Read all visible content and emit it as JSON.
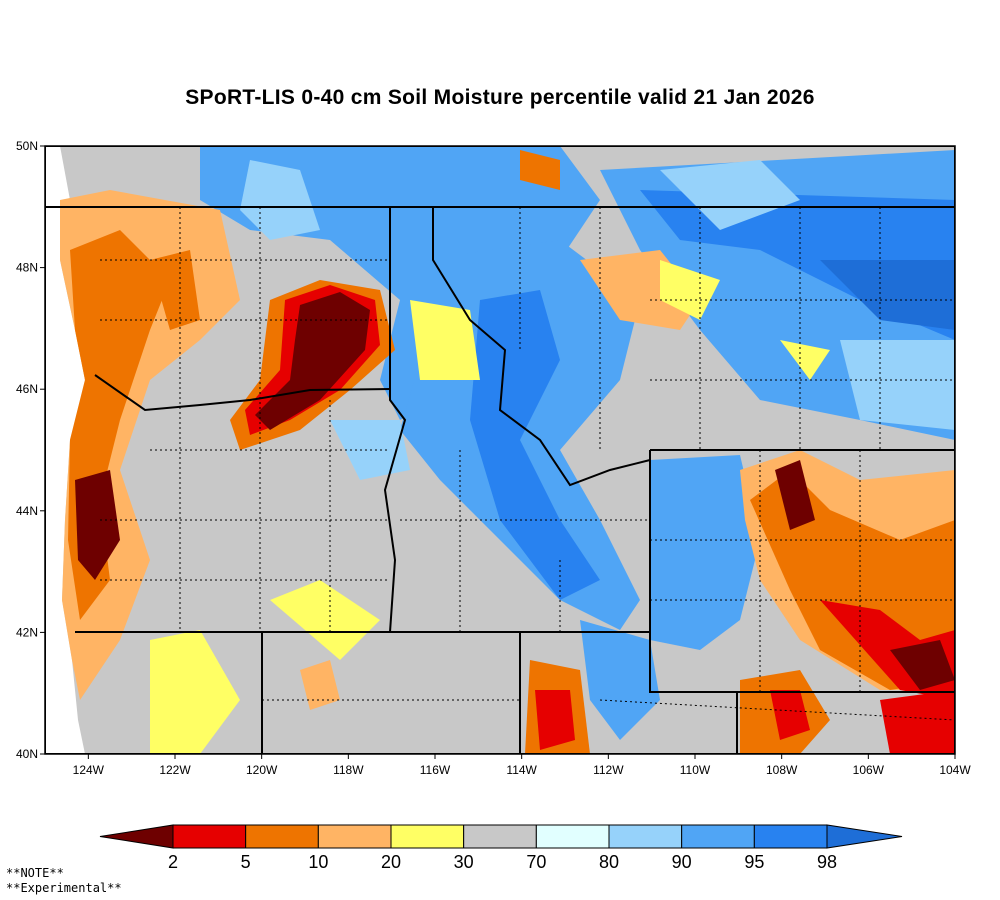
{
  "title": "SPoRT-LIS 0-40 cm Soil Moisture percentile valid 21 Jan 2026",
  "map": {
    "lon_range": [
      -125,
      -104
    ],
    "lat_range": [
      40,
      50
    ],
    "lon_ticks": [
      "124W",
      "122W",
      "120W",
      "118W",
      "116W",
      "114W",
      "112W",
      "110W",
      "108W",
      "106W",
      "104W"
    ],
    "lon_values": [
      -124,
      -122,
      -120,
      -118,
      -116,
      -114,
      -112,
      -110,
      -108,
      -106,
      -104
    ],
    "lat_ticks": [
      "50N",
      "48N",
      "46N",
      "44N",
      "42N",
      "40N"
    ],
    "lat_values": [
      50,
      48,
      46,
      44,
      42,
      40
    ]
  },
  "colorbar": {
    "labels": [
      "2",
      "5",
      "10",
      "20",
      "30",
      "70",
      "80",
      "90",
      "95",
      "98"
    ],
    "colors": [
      "#6e0000",
      "#e60000",
      "#ee7400",
      "#ffb464",
      "#ffff64",
      "#c8c8c8",
      "#e1ffff",
      "#96d2fa",
      "#50a5f5",
      "#2882f0",
      "#1e6ed7"
    ]
  },
  "notes": [
    "**NOTE**",
    "**Experimental**"
  ]
}
